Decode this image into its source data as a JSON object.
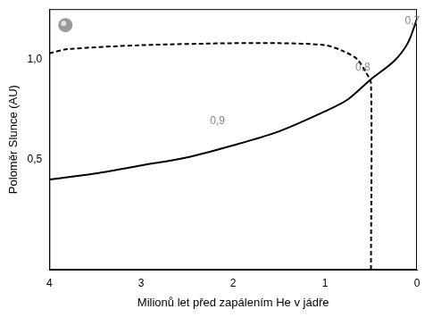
{
  "chart_data": {
    "type": "line",
    "x_label": "Milionů let před zapálením He v jádře",
    "y_label": "Poloměr Slunce (AU)",
    "xlim": [
      4,
      0
    ],
    "xticks": [
      4,
      3,
      2,
      1,
      0
    ],
    "ylim": [
      -0.05,
      1.25
    ],
    "yticks": [
      {
        "value": 0.5,
        "label": "0,5"
      },
      {
        "value": 1.0,
        "label": "1,0"
      }
    ],
    "grid": false,
    "series": [
      {
        "color": "#000000",
        "line_style": "solid",
        "x": [
          4,
          3.5,
          3,
          2.5,
          2,
          1.5,
          1,
          0.75,
          0.5,
          0.25,
          0.1,
          0
        ],
        "values": [
          0.4,
          0.43,
          0.47,
          0.51,
          0.57,
          0.64,
          0.74,
          0.8,
          0.9,
          0.99,
          1.08,
          1.2
        ]
      },
      {
        "color": "#000000",
        "line_style": "dashed",
        "x": [
          4,
          3.8,
          3,
          2,
          1.5,
          1,
          0.8,
          0.65,
          0.55,
          0.5,
          0.5
        ],
        "values": [
          1.03,
          1.05,
          1.07,
          1.08,
          1.08,
          1.07,
          1.04,
          1.0,
          0.93,
          0.88,
          -0.05
        ]
      }
    ],
    "annotations": [
      {
        "text": "0,9",
        "x": 2.17,
        "y": 0.69,
        "color": "#888888"
      },
      {
        "text": "0,8",
        "x": 0.59,
        "y": 0.96,
        "color": "#888888"
      },
      {
        "text": "0,7",
        "x": 0.05,
        "y": 1.19,
        "color": "#888888"
      }
    ]
  }
}
